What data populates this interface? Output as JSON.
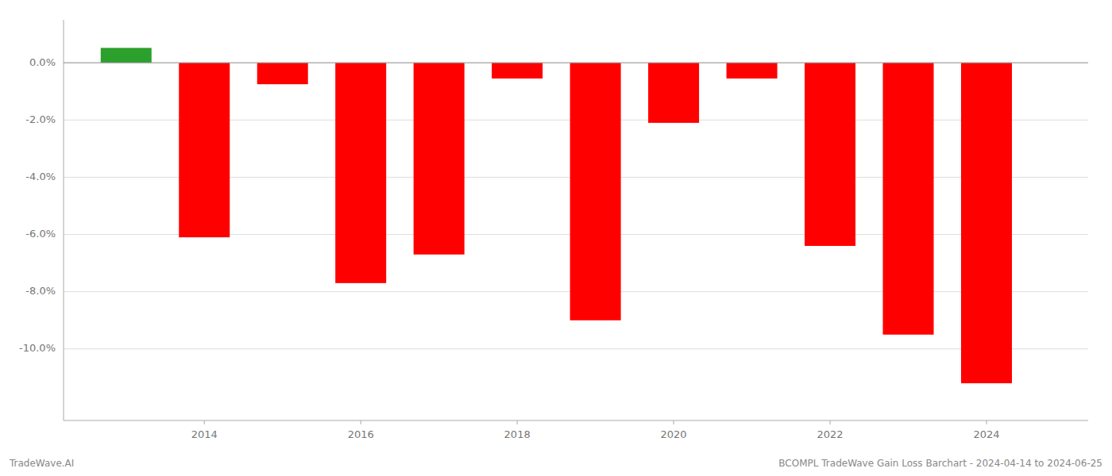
{
  "chart_data": {
    "type": "bar",
    "x": [
      2013,
      2014,
      2015,
      2016,
      2017,
      2018,
      2019,
      2020,
      2021,
      2022,
      2023,
      2024
    ],
    "values": [
      0.52,
      -6.1,
      -0.75,
      -7.7,
      -6.7,
      -0.55,
      -9.0,
      -2.1,
      -0.55,
      -6.4,
      -9.5,
      -11.2
    ],
    "colors": [
      "#2ca02c",
      "#ff0000",
      "#ff0000",
      "#ff0000",
      "#ff0000",
      "#ff0000",
      "#ff0000",
      "#ff0000",
      "#ff0000",
      "#ff0000",
      "#ff0000",
      "#ff0000"
    ],
    "xlim": [
      2012.2,
      2025.3
    ],
    "xticks": [
      2014,
      2016,
      2018,
      2020,
      2022,
      2024
    ],
    "ylim": [
      -12.5,
      1.5
    ],
    "yticks": [
      {
        "value": 0.0,
        "label": "0.0%"
      },
      {
        "value": -2.0,
        "label": "-2.0%"
      },
      {
        "value": -4.0,
        "label": "-4.0%"
      },
      {
        "value": -6.0,
        "label": "-6.0%"
      },
      {
        "value": -8.0,
        "label": "-8.0%"
      },
      {
        "value": -10.0,
        "label": "-10.0%"
      }
    ],
    "grid": true,
    "annotations": [
      "TradeWave.AI",
      "BCOMPL TradeWave Gain Loss Barchart - 2024-04-14 to 2024-06-25"
    ]
  }
}
